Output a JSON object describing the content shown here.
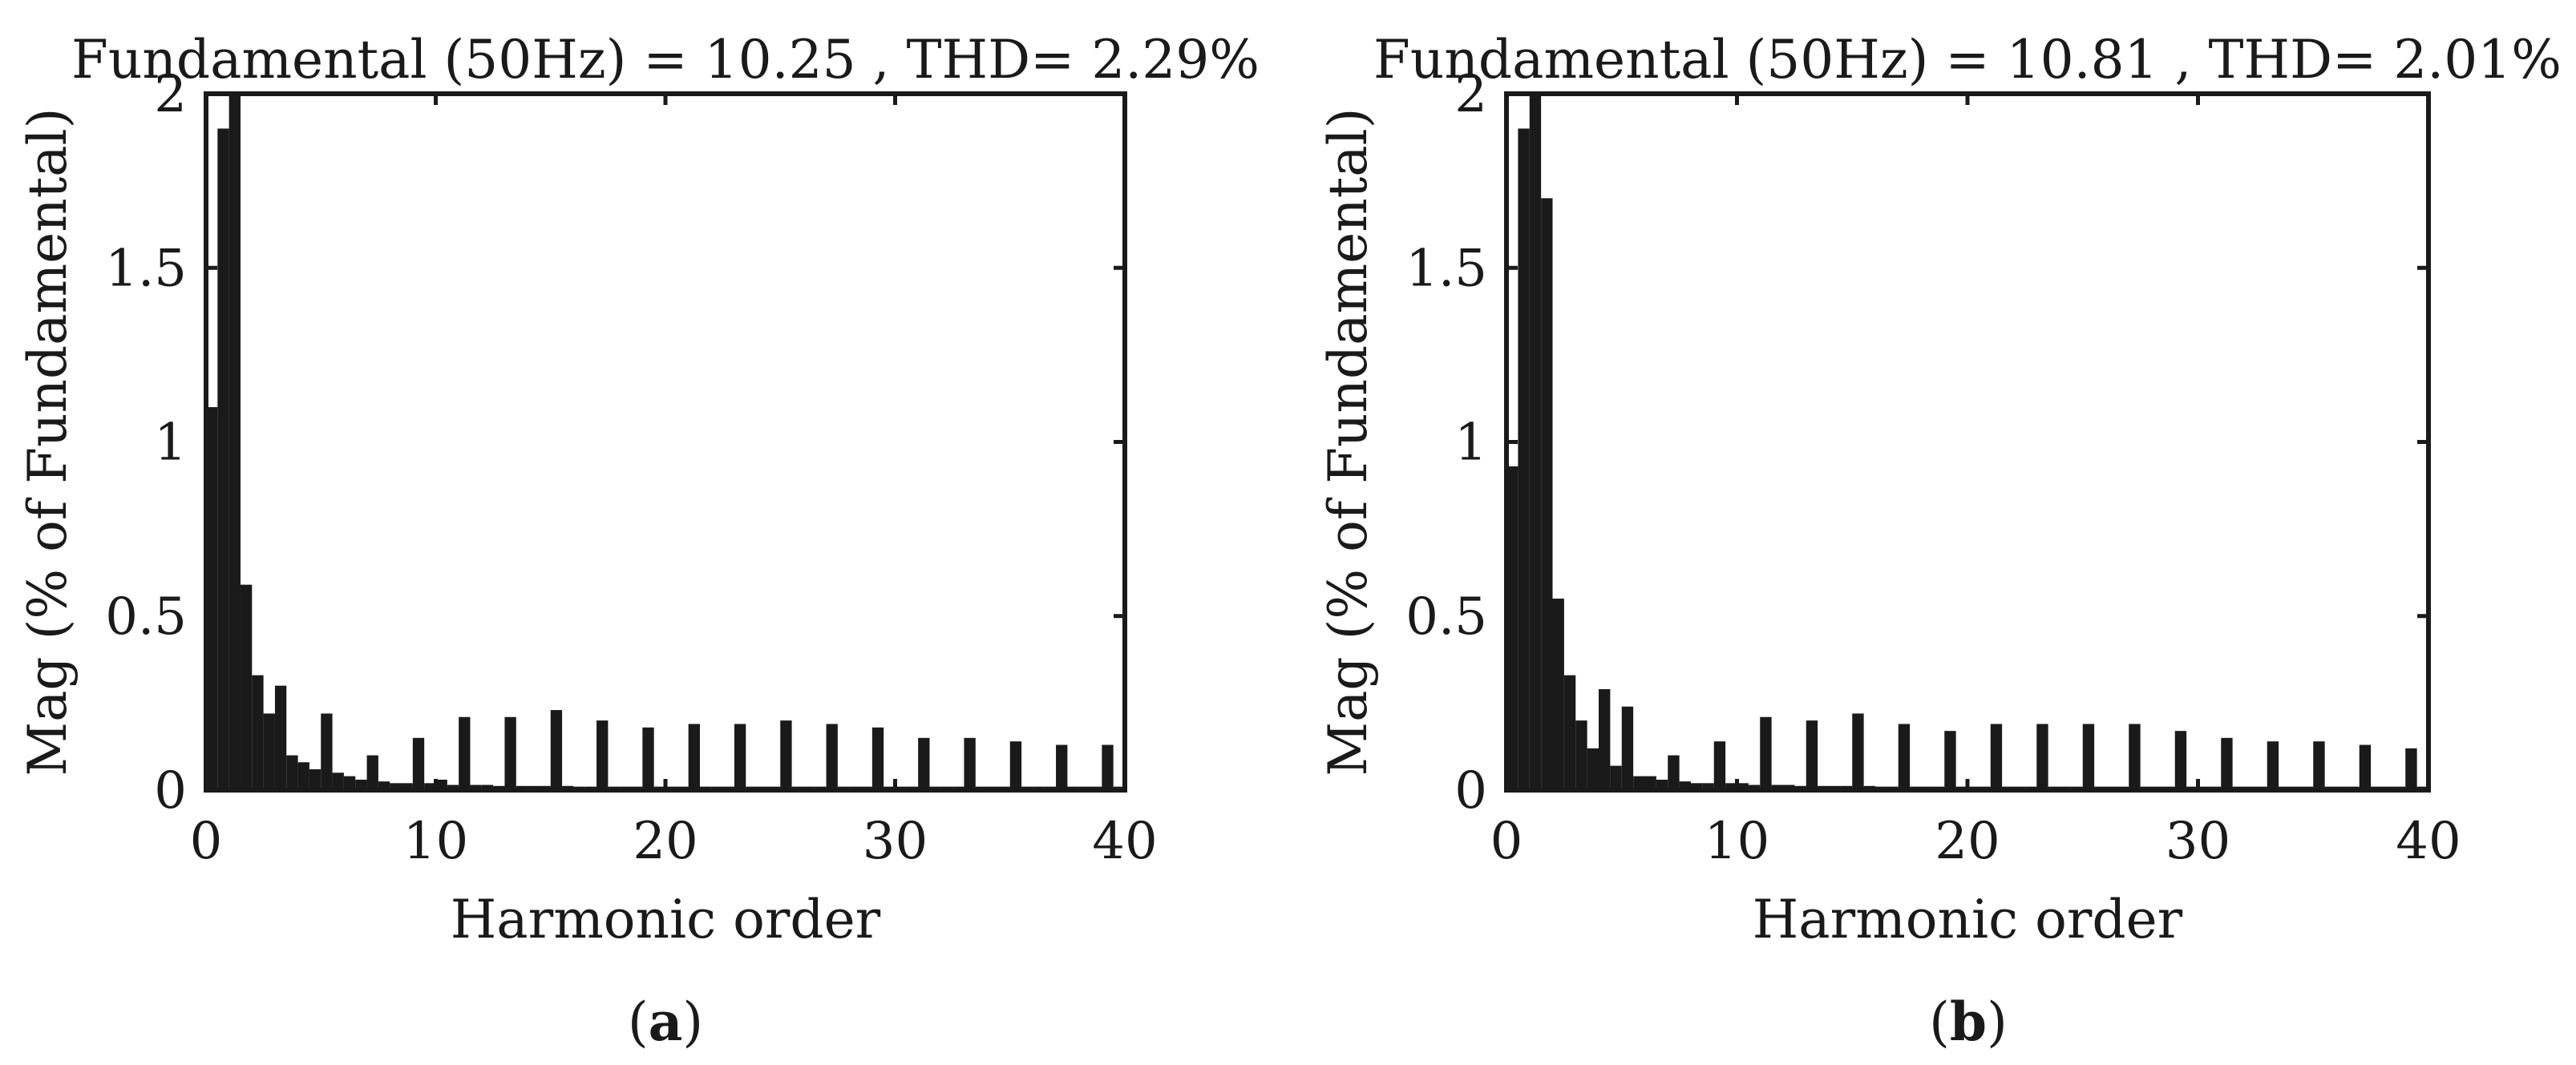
{
  "chart_data": [
    {
      "panel_label": "(a)",
      "panel_letter": "a",
      "type": "bar",
      "title": "Fundamental (50Hz) = 10.25 , THD= 2.29%",
      "xlabel": "Harmonic order",
      "ylabel": "Mag (% of Fundamental)",
      "xlim": [
        0,
        40
      ],
      "ylim": [
        0,
        2
      ],
      "xticks": [
        0,
        10,
        20,
        30,
        40
      ],
      "xtick_labels": [
        "0",
        "10",
        "20",
        "30",
        "40"
      ],
      "yticks": [
        0,
        0.5,
        1,
        1.5,
        2
      ],
      "ytick_labels": [
        "0",
        "0.5",
        "1",
        "1.5",
        "2"
      ],
      "grid": false,
      "bar_width": 0.5,
      "series": [
        {
          "x": [
            0,
            0.5,
            1,
            1.5,
            2,
            2.5,
            3,
            3.5,
            4,
            4.5,
            5,
            5.5,
            6,
            6.5,
            7,
            7.5,
            8,
            8.5,
            9,
            9.5,
            10,
            10.5,
            11,
            11.5,
            12,
            12.5,
            13,
            13.5,
            14,
            14.5,
            15,
            15.5,
            16,
            16.5,
            17,
            17.5,
            18,
            18.5,
            19,
            19.5,
            20,
            20.5,
            21,
            21.5,
            22,
            22.5,
            23,
            23.5,
            24,
            24.5,
            25,
            25.5,
            26,
            26.5,
            27,
            27.5,
            28,
            28.5,
            29,
            29.5,
            30,
            30.5,
            31,
            31.5,
            32,
            32.5,
            33,
            33.5,
            34,
            34.5,
            35,
            35.5,
            36,
            36.5,
            37,
            37.5,
            38,
            38.5,
            39,
            39.5
          ],
          "values": [
            1.1,
            1.9,
            2.0,
            0.59,
            0.33,
            0.22,
            0.3,
            0.1,
            0.08,
            0.06,
            0.22,
            0.05,
            0.04,
            0.03,
            0.1,
            0.025,
            0.02,
            0.02,
            0.15,
            0.02,
            0.03,
            0.015,
            0.21,
            0.015,
            0.015,
            0.012,
            0.21,
            0.012,
            0.012,
            0.012,
            0.23,
            0.012,
            0.01,
            0.01,
            0.2,
            0.01,
            0.01,
            0.01,
            0.18,
            0.01,
            0.01,
            0.01,
            0.19,
            0.01,
            0.01,
            0.01,
            0.19,
            0.01,
            0.01,
            0.01,
            0.2,
            0.01,
            0.01,
            0.01,
            0.19,
            0.01,
            0.01,
            0.01,
            0.18,
            0.01,
            0.01,
            0.01,
            0.15,
            0.01,
            0.01,
            0.01,
            0.15,
            0.01,
            0.01,
            0.01,
            0.14,
            0.01,
            0.01,
            0.01,
            0.13,
            0.01,
            0.01,
            0.01,
            0.13,
            0.01
          ]
        }
      ]
    },
    {
      "panel_label": "(b)",
      "panel_letter": "b",
      "type": "bar",
      "title": "Fundamental (50Hz) = 10.81 , THD= 2.01%",
      "xlabel": "Harmonic order",
      "ylabel": "Mag (% of Fundamental)",
      "xlim": [
        0,
        40
      ],
      "ylim": [
        0,
        2
      ],
      "xticks": [
        0,
        10,
        20,
        30,
        40
      ],
      "xtick_labels": [
        "0",
        "10",
        "20",
        "30",
        "40"
      ],
      "yticks": [
        0,
        0.5,
        1,
        1.5,
        2
      ],
      "ytick_labels": [
        "0",
        "0.5",
        "1",
        "1.5",
        "2"
      ],
      "grid": false,
      "bar_width": 0.5,
      "series": [
        {
          "x": [
            0,
            0.5,
            1,
            1.5,
            2,
            2.5,
            3,
            3.5,
            4,
            4.5,
            5,
            5.5,
            6,
            6.5,
            7,
            7.5,
            8,
            8.5,
            9,
            9.5,
            10,
            10.5,
            11,
            11.5,
            12,
            12.5,
            13,
            13.5,
            14,
            14.5,
            15,
            15.5,
            16,
            16.5,
            17,
            17.5,
            18,
            18.5,
            19,
            19.5,
            20,
            20.5,
            21,
            21.5,
            22,
            22.5,
            23,
            23.5,
            24,
            24.5,
            25,
            25.5,
            26,
            26.5,
            27,
            27.5,
            28,
            28.5,
            29,
            29.5,
            30,
            30.5,
            31,
            31.5,
            32,
            32.5,
            33,
            33.5,
            34,
            34.5,
            35,
            35.5,
            36,
            36.5,
            37,
            37.5,
            38,
            38.5,
            39,
            39.5
          ],
          "values": [
            0.93,
            1.9,
            2.0,
            1.7,
            0.55,
            0.33,
            0.2,
            0.12,
            0.29,
            0.07,
            0.24,
            0.04,
            0.04,
            0.03,
            0.1,
            0.025,
            0.02,
            0.02,
            0.14,
            0.02,
            0.02,
            0.015,
            0.21,
            0.015,
            0.015,
            0.012,
            0.2,
            0.012,
            0.012,
            0.012,
            0.22,
            0.012,
            0.01,
            0.01,
            0.19,
            0.01,
            0.01,
            0.01,
            0.17,
            0.01,
            0.01,
            0.01,
            0.19,
            0.01,
            0.01,
            0.01,
            0.19,
            0.01,
            0.01,
            0.01,
            0.19,
            0.01,
            0.01,
            0.01,
            0.19,
            0.01,
            0.01,
            0.01,
            0.17,
            0.01,
            0.01,
            0.01,
            0.15,
            0.01,
            0.01,
            0.01,
            0.14,
            0.01,
            0.01,
            0.01,
            0.14,
            0.01,
            0.01,
            0.01,
            0.13,
            0.01,
            0.01,
            0.01,
            0.12,
            0.01
          ]
        }
      ]
    }
  ]
}
